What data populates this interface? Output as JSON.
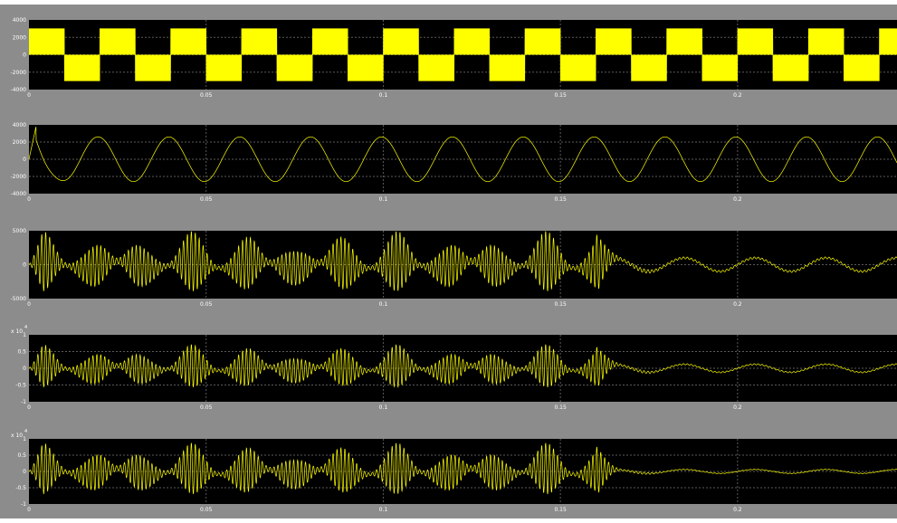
{
  "colors": {
    "frame": "#8c8c8c",
    "plot": "#000000",
    "trace": "#ffff00",
    "grid": "#5a5a5a",
    "text": "#ffffff"
  },
  "chart_data": [
    {
      "type": "line",
      "waveform": "square",
      "xlim": [
        0,
        0.245
      ],
      "ylim": [
        -4000,
        4000
      ],
      "xticks": [
        "0",
        "0.05",
        "0.1",
        "0.15",
        "0.2"
      ],
      "yticks": [
        "4000",
        "2000",
        "0",
        "-2000",
        "-4000"
      ],
      "exponent": "",
      "amplitude": 3000,
      "period": 0.02,
      "trace_count": 1,
      "grid": true
    },
    {
      "type": "line",
      "waveform": "sine-with-startup-transient",
      "xlim": [
        0,
        0.245
      ],
      "ylim": [
        -4000,
        4000
      ],
      "xticks": [
        "0",
        "0.05",
        "0.1",
        "0.15",
        "0.2"
      ],
      "yticks": [
        "4000",
        "2000",
        "0",
        "-2000",
        "-4000"
      ],
      "exponent": "",
      "amplitude": 2600,
      "period": 0.02,
      "transient_peak": 3800,
      "trace_count": 1,
      "grid": true
    },
    {
      "type": "line",
      "waveform": "modulated-oscillation-then-decaying-sine",
      "xlim": [
        0,
        0.245
      ],
      "ylim": [
        -5000,
        5000
      ],
      "xticks": [
        "0",
        "0.05",
        "0.1",
        "0.15",
        "0.2"
      ],
      "yticks": [
        "5000",
        "0",
        "-5000"
      ],
      "exponent": "",
      "envelope_max": 4500,
      "switch_time": 0.16,
      "tail_amplitude": 1000,
      "period": 0.02,
      "trace_count": 1,
      "grid": true
    },
    {
      "type": "line",
      "waveform": "modulated-oscillation-then-decaying",
      "xlim": [
        0,
        0.245
      ],
      "ylim": [
        -1,
        1
      ],
      "xticks": [
        "0",
        "0.05",
        "0.1",
        "0.15",
        "0.2"
      ],
      "yticks": [
        "1",
        "0.5",
        "0",
        "-0.5",
        "-1"
      ],
      "exponent": "4",
      "envelope_max": 0.65,
      "switch_time": 0.16,
      "tail_amplitude": 0.12,
      "period": 0.02,
      "trace_count": 1,
      "grid": true
    },
    {
      "type": "line",
      "waveform": "modulated-oscillation-then-decaying",
      "xlim": [
        0,
        0.245
      ],
      "ylim": [
        -1,
        1
      ],
      "xticks": [
        "0",
        "0.05",
        "0.1",
        "0.15",
        "0.2"
      ],
      "yticks": [
        "1",
        "0.5",
        "0",
        "-0.5",
        "-1"
      ],
      "exponent": "4",
      "envelope_max": 0.8,
      "switch_time": 0.16,
      "tail_amplitude": 0.06,
      "period": 0.02,
      "trace_count": 1,
      "grid": true
    }
  ]
}
